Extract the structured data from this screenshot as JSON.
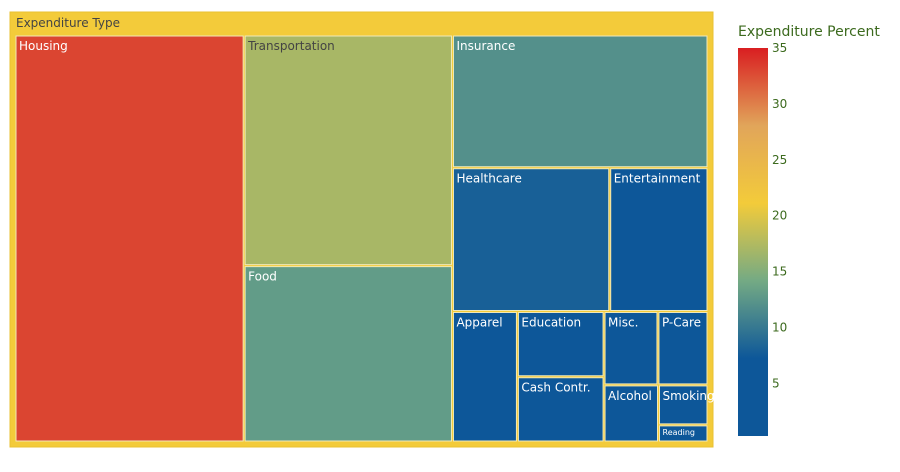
{
  "chart_data": {
    "type": "treemap",
    "root_label": "Expenditure Type",
    "colorbar": {
      "title": "Expenditure Percent",
      "range": [
        0.3,
        35
      ],
      "ticks": [
        5,
        10,
        15,
        20,
        25,
        30,
        35
      ],
      "colorscale": [
        "#0d5799",
        "#0d5799",
        "#74aa84",
        "#f3cb3a",
        "#e1a55a",
        "#d91e21"
      ]
    },
    "items": [
      {
        "label": "Housing",
        "value": 33
      },
      {
        "label": "Transportation",
        "value": 17
      },
      {
        "label": "Insurance",
        "value": 12
      },
      {
        "label": "Food",
        "value": 13
      },
      {
        "label": "Healthcare",
        "value": 8
      },
      {
        "label": "Entertainment",
        "value": 5
      },
      {
        "label": "Apparel",
        "value": 3
      },
      {
        "label": "Education",
        "value": 2
      },
      {
        "label": "Cash Contr.",
        "value": 2
      },
      {
        "label": "Misc.",
        "value": 1.4
      },
      {
        "label": "P-Care",
        "value": 1.3
      },
      {
        "label": "Alcohol",
        "value": 1.1
      },
      {
        "label": "Smoking",
        "value": 0.7
      },
      {
        "label": "Reading",
        "value": 0.3
      }
    ]
  }
}
